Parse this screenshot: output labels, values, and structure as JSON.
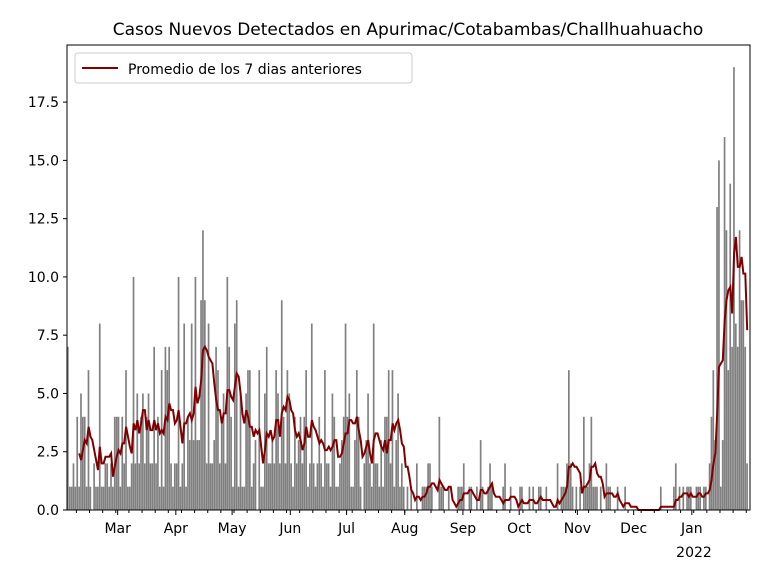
{
  "chart_data": {
    "type": "bar",
    "title": "Casos Nuevos Detectados en Apurimac/Cotabambas/Challhuahuacho",
    "xlabel": "",
    "ylabel": "",
    "start_date": "2021-02-02",
    "xlim_days": [
      0,
      364
    ],
    "ylim": [
      0,
      19.95
    ],
    "yticks": [
      "0.0",
      "2.5",
      "5.0",
      "7.5",
      "10.0",
      "12.5",
      "15.0",
      "17.5"
    ],
    "ytick_values": [
      0,
      2.5,
      5,
      7.5,
      10,
      12.5,
      15,
      17.5
    ],
    "xticks": [
      {
        "label": "Mar",
        "day": 27
      },
      {
        "label": "Apr",
        "day": 58
      },
      {
        "label": "May",
        "day": 88
      },
      {
        "label": "Jun",
        "day": 119
      },
      {
        "label": "Jul",
        "day": 149
      },
      {
        "label": "Aug",
        "day": 180
      },
      {
        "label": "Sep",
        "day": 211
      },
      {
        "label": "Oct",
        "day": 241
      },
      {
        "label": "Nov",
        "day": 272
      },
      {
        "label": "Dec",
        "day": 302
      },
      {
        "label": "Jan",
        "day": 333
      }
    ],
    "year_label": "2022",
    "legend": {
      "label": "Promedio de los 7 dias anteriores",
      "placement": "top-left"
    },
    "bar_color": "#808080",
    "line_color": "#800000",
    "rolling_window": 7,
    "daily_cases": [
      7,
      1,
      1,
      2,
      1,
      4,
      1,
      5,
      4,
      4,
      1,
      6,
      1,
      0,
      2,
      1,
      1,
      8,
      1,
      1,
      2,
      2,
      1,
      2,
      1,
      4,
      4,
      4,
      1,
      4,
      2,
      6,
      1,
      1,
      2,
      10,
      2,
      5,
      2,
      4,
      5,
      2,
      4,
      5,
      2,
      2,
      7,
      2,
      4,
      1,
      6,
      1,
      7,
      6,
      7,
      2,
      1,
      2,
      2,
      10,
      1,
      2,
      8,
      1,
      4,
      3,
      8,
      3,
      10,
      3,
      3,
      9,
      12,
      9,
      2,
      8,
      2,
      2,
      3,
      7,
      6,
      2,
      4,
      5,
      2,
      10,
      7,
      4,
      1,
      8,
      9,
      1,
      5,
      1,
      1,
      5,
      6,
      6,
      1,
      2,
      3,
      0,
      6,
      1,
      1,
      5,
      7,
      2,
      2,
      3,
      2,
      6,
      5,
      2,
      9,
      4,
      2,
      6,
      5,
      2,
      1,
      4,
      2,
      3,
      4,
      2,
      4,
      6,
      1,
      2,
      8,
      2,
      1,
      2,
      4,
      2,
      1,
      6,
      2,
      2,
      1,
      5,
      4,
      1,
      1,
      2,
      3,
      4,
      8,
      4,
      5,
      1,
      1,
      3,
      6,
      4,
      1,
      0,
      2,
      3,
      5,
      2,
      1,
      8,
      2,
      2,
      1,
      3,
      1,
      4,
      4,
      6,
      2,
      6,
      1,
      3,
      5,
      1,
      2,
      1,
      0,
      1,
      0,
      1,
      0,
      0,
      2,
      0,
      0,
      1,
      1,
      1,
      2,
      2,
      1,
      0,
      0,
      0,
      4,
      1,
      1,
      0,
      0,
      1,
      0,
      0,
      0,
      0,
      1,
      1,
      1,
      2,
      0,
      0,
      1,
      1,
      0,
      0,
      1,
      0,
      3,
      1,
      0,
      0,
      1,
      2,
      1,
      0,
      0,
      0,
      0,
      0,
      1,
      2,
      0,
      0,
      1,
      0,
      0,
      0,
      0,
      1,
      1,
      0,
      0,
      0,
      1,
      0,
      1,
      0,
      0,
      1,
      1,
      0,
      0,
      1,
      0,
      0,
      0,
      0,
      0,
      2,
      0,
      1,
      1,
      1,
      2,
      6,
      2,
      1,
      0,
      1,
      0,
      1,
      0,
      4,
      1,
      1,
      2,
      4,
      1,
      1,
      1,
      0,
      1,
      0,
      0,
      2,
      1,
      1,
      0,
      0,
      0,
      1,
      0,
      0,
      0,
      1,
      0,
      0,
      0,
      0,
      0,
      0,
      0,
      0,
      0,
      0,
      0,
      0,
      0,
      0,
      0,
      0,
      0,
      0,
      1,
      0,
      0,
      0,
      0,
      0,
      0,
      1,
      2,
      0,
      1,
      0,
      1,
      0,
      1,
      1,
      1,
      0,
      0,
      1,
      1,
      1,
      0,
      1,
      1,
      0,
      2,
      4,
      6,
      3,
      13,
      15,
      1,
      3,
      16,
      12,
      6,
      14,
      7,
      19,
      8,
      7,
      12,
      9,
      9,
      7,
      2
    ]
  }
}
